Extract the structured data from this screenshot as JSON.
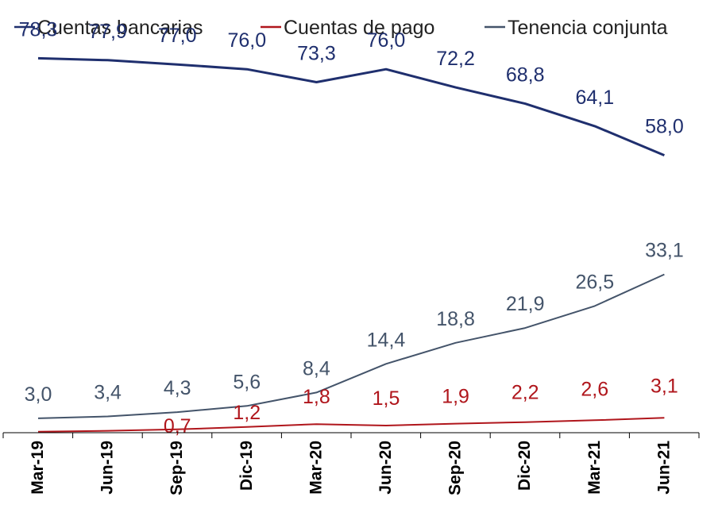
{
  "chart_data": {
    "type": "line",
    "title": "",
    "xlabel": "",
    "ylabel": "",
    "categories": [
      "Mar-19",
      "Jun-19",
      "Sep-19",
      "Dic-19",
      "Mar-20",
      "Jun-20",
      "Sep-20",
      "Dic-20",
      "Mar-21",
      "Jun-21"
    ],
    "ylim": [
      0,
      85
    ],
    "grid": false,
    "legend": "top",
    "series": [
      {
        "name": "Cuentas bancarias",
        "color": "#1f2f6e",
        "values": [
          78.3,
          77.9,
          77.0,
          76.0,
          73.3,
          76.0,
          72.2,
          68.8,
          64.1,
          58.0
        ],
        "labels": [
          "78,3",
          "77,9",
          "77,0",
          "76,0",
          "73,3",
          "76,0",
          "72,2",
          "68,8",
          "64,1",
          "58,0"
        ]
      },
      {
        "name": "Cuentas de pago",
        "color": "#b0161c",
        "values": [
          0.2,
          0.4,
          0.7,
          1.2,
          1.8,
          1.5,
          1.9,
          2.2,
          2.6,
          3.1
        ],
        "labels": [
          "",
          "",
          "0,7",
          "1,2",
          "1,8",
          "1,5",
          "1,9",
          "2,2",
          "2,6",
          "3,1"
        ]
      },
      {
        "name": "Tenencia conjunta",
        "color": "#44546a",
        "values": [
          3.0,
          3.4,
          4.3,
          5.6,
          8.4,
          14.4,
          18.8,
          21.9,
          26.5,
          33.1
        ],
        "labels": [
          "3,0",
          "3,4",
          "4,3",
          "5,6",
          "8,4",
          "14,4",
          "18,8",
          "21,9",
          "26,5",
          "33,1"
        ]
      }
    ]
  }
}
